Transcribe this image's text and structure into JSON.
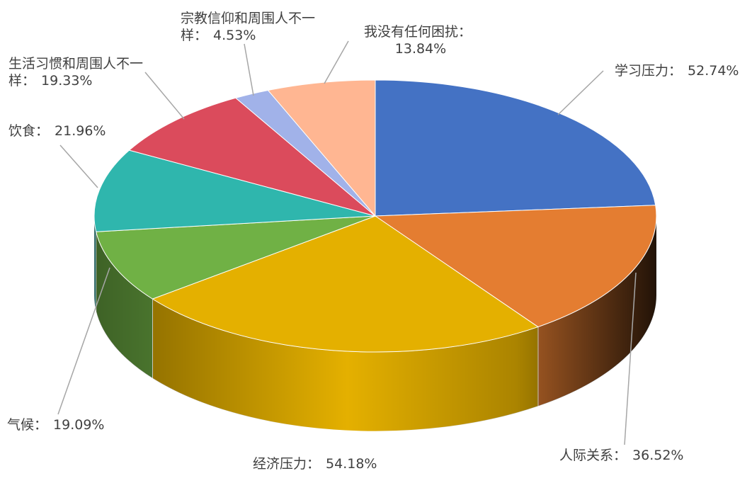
{
  "chart_data": {
    "type": "pie3d",
    "categories": [
      "学习压力：",
      "人际关系：",
      "经济压力：",
      "气候：",
      "饮食：",
      "生活习惯和周围人不一样：",
      "宗教信仰和周围人不一样：",
      "我没有任何困扰："
    ],
    "values": [
      52.74,
      36.52,
      54.18,
      19.09,
      21.96,
      19.33,
      4.53,
      13.84
    ],
    "value_labels": [
      "52.74%",
      "36.52%",
      "54.18%",
      "19.09%",
      "21.96%",
      "19.33%",
      "4.53%",
      "13.84%"
    ],
    "colors": [
      "#4472c4",
      "#e47d31",
      "#e4b000",
      "#70b145",
      "#2fb6ad",
      "#db4b5c",
      "#a1b2e9",
      "#ffb692"
    ]
  }
}
